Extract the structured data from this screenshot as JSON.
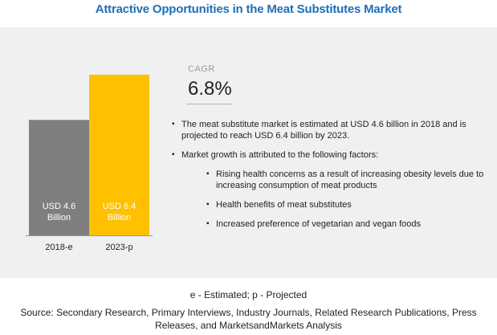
{
  "title": "Attractive Opportunities in the Meat Substitutes Market",
  "cagr": {
    "label": "CAGR",
    "value": "6.8%"
  },
  "bullets": [
    {
      "level": 1,
      "text": "The meat substitute market is estimated at USD 4.6 billion in 2018 and is projected to reach USD 6.4 billion by 2023."
    },
    {
      "level": 1,
      "text": "Market growth is attributed to the following factors:"
    },
    {
      "level": 2,
      "text": "Rising health concerns as a result of increasing obesity levels due to increasing consumption of meat products"
    },
    {
      "level": 2,
      "text": "Health benefits of meat substitutes"
    },
    {
      "level": 2,
      "text": "Increased preference of vegetarian and vegan foods"
    }
  ],
  "footnote": "e - Estimated; p - Projected",
  "source": {
    "line1": "Source: Secondary Research, Primary Interviews, Industry Journals, Related Research Publications, Press",
    "line2": "Releases, and MarketsandMarkets Analysis"
  },
  "chart_data": {
    "type": "bar",
    "categories": [
      "2018-e",
      "2023-p"
    ],
    "values": [
      4.6,
      6.4
    ],
    "labels": [
      [
        "USD 4.6",
        "Billion"
      ],
      [
        "USD 6.4",
        "Billion"
      ]
    ],
    "colors": [
      "#7f7f7f",
      "#ffc000"
    ],
    "ylim": [
      0,
      6.4
    ]
  }
}
